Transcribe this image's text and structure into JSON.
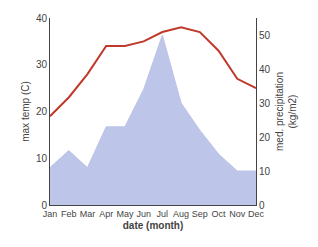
{
  "chart_data": {
    "type": "line",
    "xlabel": "date (month)",
    "ylabel": "max temp (C)",
    "y2label": "med. precipitation\n(kg/m2)",
    "categories": [
      "Jan",
      "Feb",
      "Mar",
      "Apr",
      "May",
      "Jun",
      "Jul",
      "Aug",
      "Sep",
      "Oct",
      "Nov",
      "Dec"
    ],
    "series": [
      {
        "type": "line",
        "color": "#c0392b",
        "values": [
          19,
          23,
          28,
          34,
          34,
          35,
          37,
          38,
          37,
          33,
          27,
          25
        ]
      },
      {
        "type": "area",
        "axis": "y2",
        "color": "#bdc5e8",
        "values": [
          11,
          16,
          11,
          23,
          23,
          34,
          50,
          30,
          22,
          15,
          10,
          10
        ]
      }
    ],
    "ylim": [
      0,
      40
    ],
    "yticks": [
      0,
      10,
      20,
      30,
      40
    ],
    "y2lim": [
      0,
      55
    ],
    "y2ticks": [
      0,
      10,
      20,
      30,
      40,
      50
    ],
    "grid": false
  }
}
